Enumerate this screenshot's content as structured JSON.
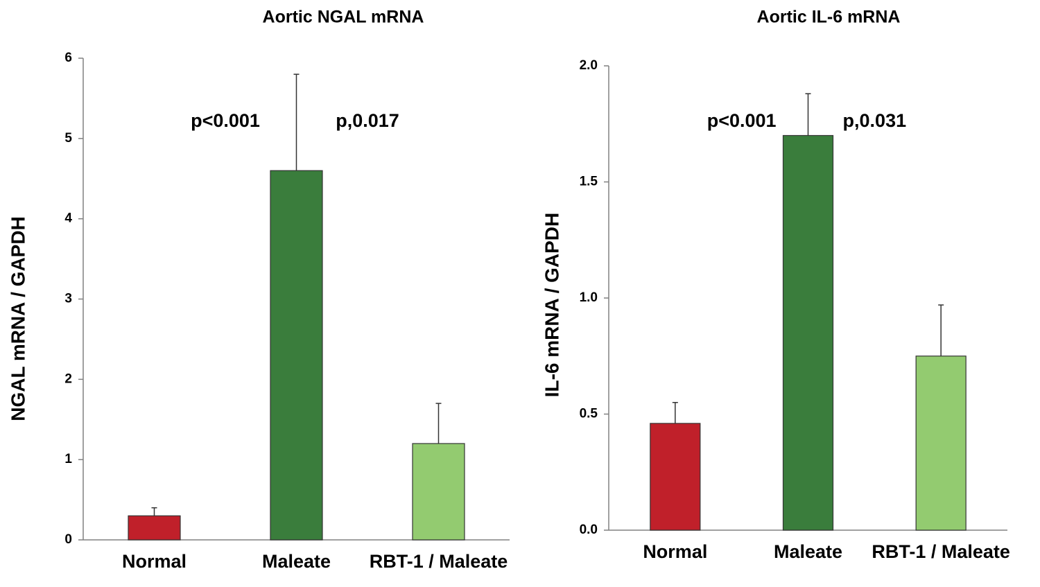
{
  "chart_data": [
    {
      "type": "bar",
      "title": "Aortic NGAL mRNA",
      "y_label": "NGAL mRNA  / GAPDH",
      "categories": [
        "Normal",
        "Maleate",
        "RBT-1 / Maleate"
      ],
      "values": [
        0.3,
        4.6,
        1.2
      ],
      "errors": [
        0.1,
        1.2,
        0.5
      ],
      "colors": [
        "#c0202a",
        "#3a7d3c",
        "#93cb70"
      ],
      "ylim": [
        0,
        6
      ],
      "yticks": [
        0,
        1,
        2,
        3,
        4,
        5,
        6
      ],
      "annotations": [
        "p<0.001",
        "p,0.017"
      ]
    },
    {
      "type": "bar",
      "title": "Aortic IL-6 mRNA",
      "y_label": "IL-6 mRNA / GAPDH",
      "categories": [
        "Normal",
        "Maleate",
        "RBT-1 / Maleate"
      ],
      "values": [
        0.46,
        1.7,
        0.75
      ],
      "errors": [
        0.09,
        0.18,
        0.22
      ],
      "colors": [
        "#c0202a",
        "#3a7d3c",
        "#93cb70"
      ],
      "ylim": [
        0,
        2
      ],
      "yticks": [
        {
          "value": 0,
          "label": "0.0"
        },
        0.5,
        {
          "value": 1,
          "label": "1.0"
        },
        1.5,
        {
          "value": 2,
          "label": "2.0"
        }
      ],
      "annotations": [
        "p<0.001",
        "p,0.031"
      ]
    }
  ]
}
